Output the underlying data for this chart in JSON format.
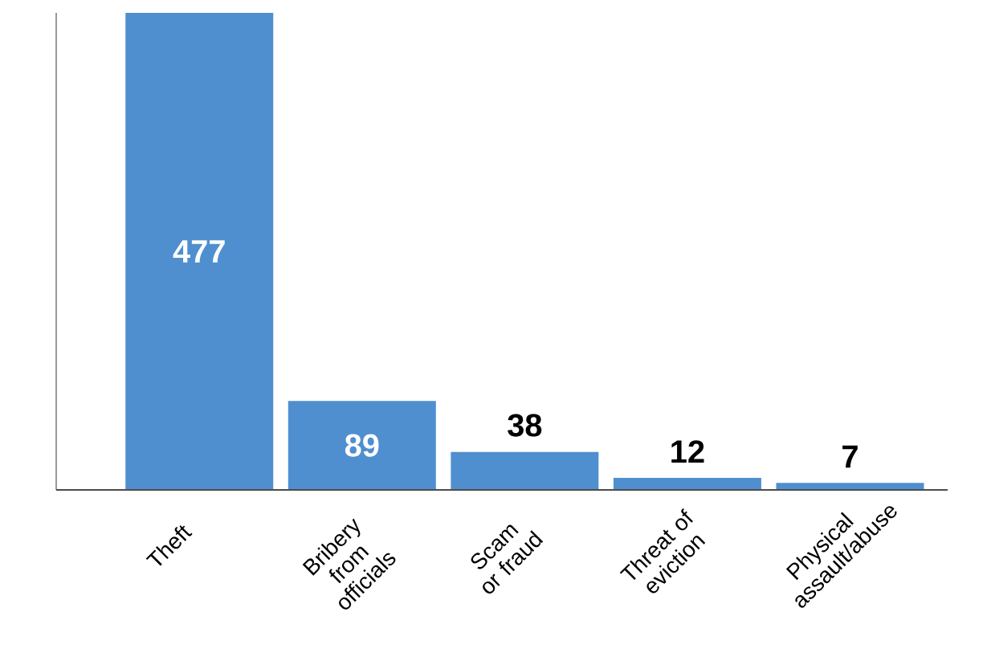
{
  "chart_data": {
    "type": "bar",
    "categories": [
      "Theft",
      "Bribery from officials",
      "Scam or fraud",
      "Threat of eviction",
      "Physical assault/abuse"
    ],
    "values": [
      477,
      89,
      38,
      12,
      7
    ],
    "color": "#4f8fcf",
    "data_labels": true
  }
}
